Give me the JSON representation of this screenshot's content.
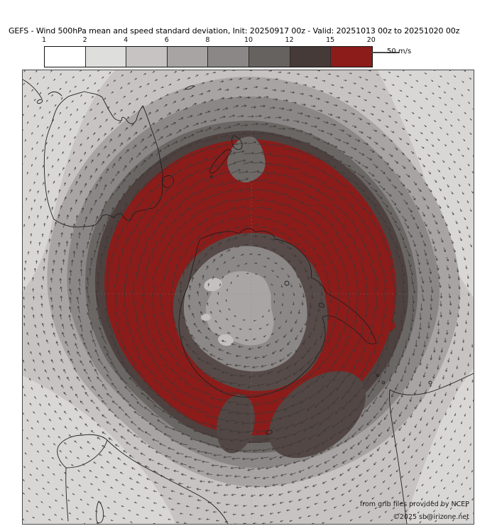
{
  "title": "GEFS - Wind 500hPa mean and speed standard deviation, Init: 20250917 00z - Valid: 20251013 00z to 20251020 00z",
  "colorbar": {
    "tick_labels": [
      "1",
      "2",
      "4",
      "6",
      "8",
      "10",
      "12",
      "15",
      "20"
    ],
    "segment_colors": [
      "#ffffff",
      "#dededd",
      "#c6c3c2",
      "#a7a4a3",
      "#8b8786",
      "#666260",
      "#463a38",
      "#8b1c1a"
    ],
    "reference_arrow_label": "50 m/s"
  },
  "map": {
    "attribution_line1": "from grib files provided by NCEP",
    "attribution_line2": "©2025 sb@irizone.net"
  }
}
